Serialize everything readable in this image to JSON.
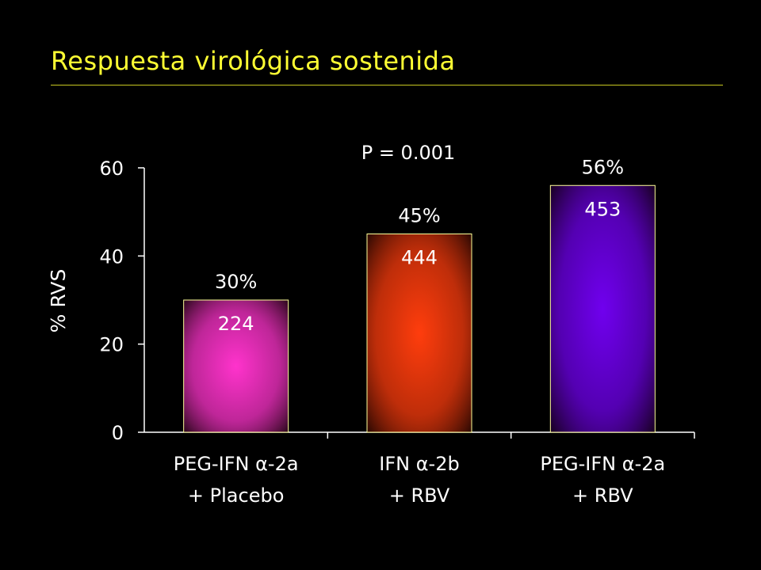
{
  "title": "Respuesta virológica sostenida",
  "chart_data": {
    "type": "bar",
    "ylabel": "% RVS",
    "xlabel": "",
    "ylim": [
      0,
      60
    ],
    "yticks": [
      0,
      20,
      40,
      60
    ],
    "categories": [
      {
        "line1": "PEG-IFN α-2a",
        "line2": "+ Placebo"
      },
      {
        "line1": "IFN α-2b",
        "line2": "+ RBV"
      },
      {
        "line1": "PEG-IFN α-2a",
        "line2": "+ RBV"
      }
    ],
    "values": [
      30,
      45,
      56
    ],
    "value_labels": [
      "30%",
      "45%",
      "56%"
    ],
    "n_labels": [
      "224",
      "444",
      "453"
    ],
    "colors": [
      "#ff33cc",
      "#ff3d0d",
      "#7000ee"
    ],
    "bar_outline": "#ffff99",
    "annotation": "P = 0.001",
    "grid": false,
    "legend": "none"
  }
}
